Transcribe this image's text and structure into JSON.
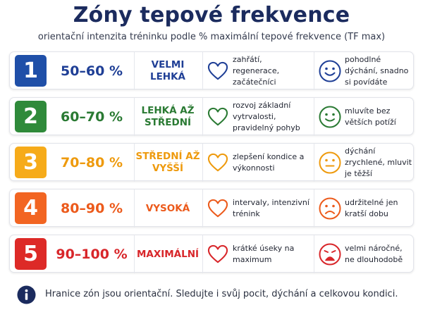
{
  "title": "Zóny tepové frekvence",
  "subtitle": "orientační intenzita tréninku podle % maximální tepové frekvence (TF max)",
  "zones": [
    {
      "number": "1",
      "percent": "50–60 %",
      "level": "VELMI LEHKÁ",
      "description": "zahřátí, regenerace, začátečníci",
      "breathing": "pohodlné dýchání, snadno si povídáte",
      "color": "#1f4fa8",
      "text_color": "#1f3f96",
      "heart_icon": "heart-outline-icon",
      "face_icon": "smiling-face-icon"
    },
    {
      "number": "2",
      "percent": "60–70 %",
      "level": "LEHKÁ AŽ STŘEDNÍ",
      "description": "rozvoj základní vytrvalosti, pravidelný pohyb",
      "breathing": "mluvíte bez větších potíží",
      "color": "#2f8a3a",
      "text_color": "#2a7a33",
      "heart_icon": "heart-outline-icon",
      "face_icon": "smiling-face-icon"
    },
    {
      "number": "3",
      "percent": "70–80 %",
      "level": "STŘEDNÍ AŽ VYŠŠÍ",
      "description": "zlepšení kondice a výkonnosti",
      "breathing": "dýchání zrychlené, mluvit je těžší",
      "color": "#f6ab1a",
      "text_color": "#ee9a0d",
      "heart_icon": "heart-outline-icon",
      "face_icon": "neutral-face-icon"
    },
    {
      "number": "4",
      "percent": "80–90 %",
      "level": "VYSOKÁ",
      "description": "intervaly, intenzivní trénink",
      "breathing": "udržitelné jen kratší dobu",
      "color": "#f26522",
      "text_color": "#ec5a1b",
      "heart_icon": "heart-outline-icon",
      "face_icon": "frowning-face-icon"
    },
    {
      "number": "5",
      "percent": "90–100 %",
      "level": "MAXIMÁLNÍ",
      "description": "krátké úseky na maximum",
      "breathing": "velmi náročné, ne dlouhodobě",
      "color": "#dd2a27",
      "text_color": "#d8262a",
      "heart_icon": "heart-outline-icon",
      "face_icon": "distressed-face-icon"
    }
  ],
  "note": {
    "icon": "info-icon",
    "text": "Hranice zón jsou orientační. Sledujte i svůj pocit, dýchání a celkovou kondici.",
    "color": "#1b2b5e"
  }
}
